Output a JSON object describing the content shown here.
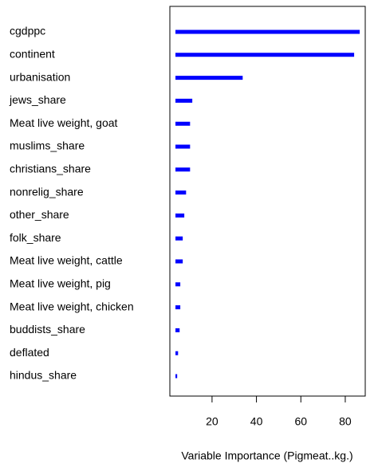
{
  "chart_data": {
    "type": "bar",
    "orientation": "horizontal",
    "categories": [
      "cgdppc",
      "continent",
      "urbanisation",
      "jews_share",
      "Meat live weight, goat",
      "muslims_share",
      "christians_share",
      "nonrelig_share",
      "other_share",
      "folk_share",
      "Meat live weight, cattle",
      "Meat live weight, pig",
      "Meat live weight, chicken",
      "buddists_share",
      "deflated",
      "hindus_share"
    ],
    "values": [
      86.5,
      84,
      33.8,
      11.1,
      10.1,
      10.1,
      10.1,
      8.3,
      7.5,
      6.8,
      6.8,
      5.7,
      5.7,
      5.4,
      4.7,
      4.3
    ],
    "color": "#0000ff",
    "xlim": [
      1,
      89
    ],
    "xticks": [
      20,
      40,
      60,
      80
    ],
    "xlabel": "Variable Importance (Pigmeat..kg.)"
  }
}
